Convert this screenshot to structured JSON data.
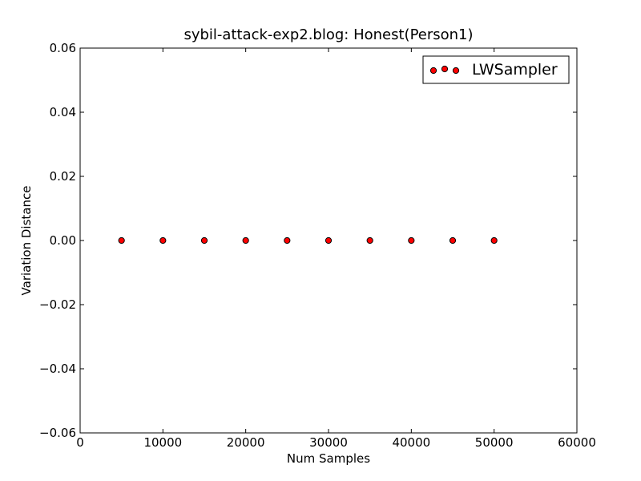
{
  "chart_data": {
    "type": "scatter",
    "title": "sybil-attack-exp2.blog: Honest(Person1)",
    "xlabel": "Num Samples",
    "ylabel": "Variation Distance",
    "xlim": [
      0,
      60000
    ],
    "ylim": [
      -0.06,
      0.06
    ],
    "xticks": [
      "0",
      "10000",
      "20000",
      "30000",
      "40000",
      "50000",
      "60000"
    ],
    "yticks": [
      "−0.06",
      "−0.04",
      "−0.02",
      "0.00",
      "0.02",
      "0.04",
      "0.06"
    ],
    "grid": false,
    "legend_position": "top-right",
    "series": [
      {
        "name": "LWSampler",
        "color": "#ff0000",
        "x": [
          5000,
          10000,
          15000,
          20000,
          25000,
          30000,
          35000,
          40000,
          45000,
          50000
        ],
        "y": [
          0,
          0,
          0,
          0,
          0,
          0,
          0,
          0,
          0,
          0
        ]
      }
    ]
  }
}
